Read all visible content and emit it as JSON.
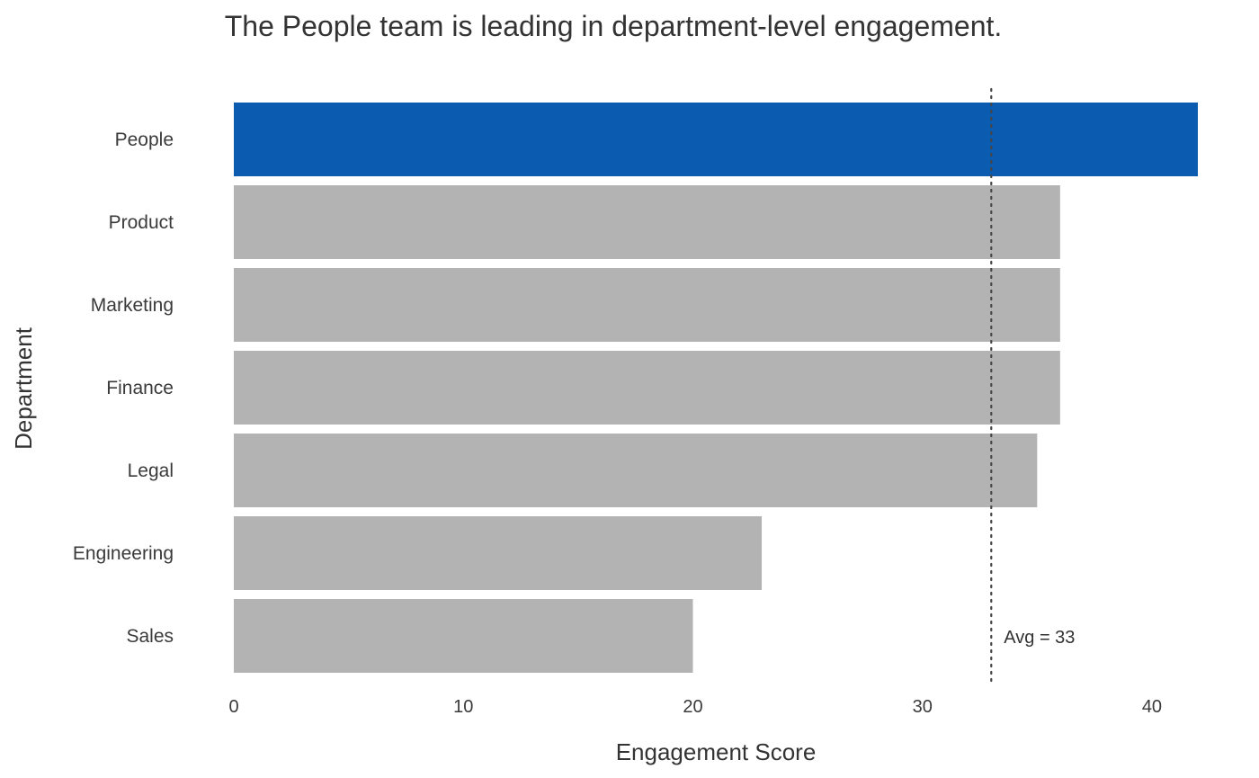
{
  "chart_data": {
    "type": "bar",
    "orientation": "horizontal",
    "title": "The People team is leading in department-level engagement.",
    "xlabel": "Engagement Score",
    "ylabel": "Department",
    "categories": [
      "People",
      "Product",
      "Marketing",
      "Finance",
      "Legal",
      "Engineering",
      "Sales"
    ],
    "values": [
      42,
      36,
      36,
      36,
      35,
      23,
      20
    ],
    "highlight": "People",
    "colors": {
      "highlight": "#0b5bb0",
      "default": "#b3b3b3",
      "reference": "#444444"
    },
    "xlim": [
      0,
      42
    ],
    "xticks": [
      "0",
      "10",
      "20",
      "30",
      "40"
    ],
    "grid": false,
    "reference_line": {
      "value": 33,
      "label": "Avg = 33",
      "style": "dotted"
    }
  }
}
